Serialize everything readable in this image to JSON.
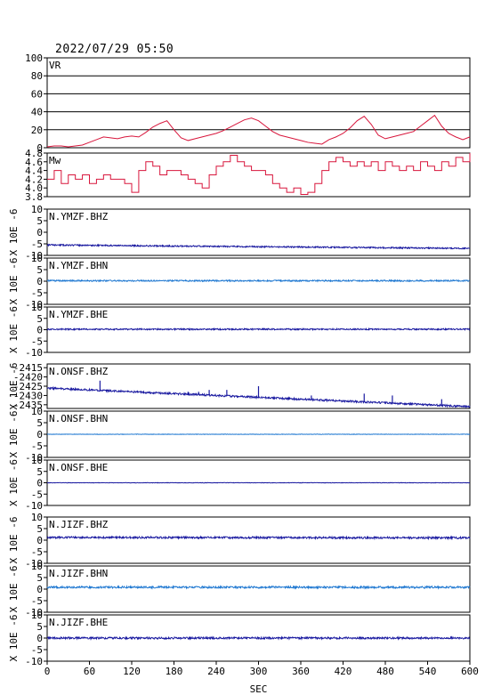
{
  "header": {
    "datetime": "2022/07/29 05:50"
  },
  "colors": {
    "frame": "#000000",
    "vr_line": "#d8163c",
    "mw_line": "#d8163c",
    "dark_trace": "#1a1aa0",
    "light_trace": "#1f78d1"
  },
  "chart_data": {
    "type": "line",
    "xlabel": "SEC",
    "xlim": [
      0,
      600
    ],
    "xticks": [
      0,
      60,
      120,
      180,
      240,
      300,
      360,
      420,
      480,
      540,
      600
    ],
    "panels": [
      {
        "id": "vr",
        "label": "VR",
        "ylim": [
          0,
          100
        ],
        "yticks": [
          0,
          20,
          40,
          60,
          80,
          100
        ],
        "ytick_labels": [
          "0",
          "20",
          "40",
          "60",
          "80",
          "100"
        ],
        "grid": true,
        "color_key": "vr_line",
        "series": {
          "x": [
            0,
            10,
            20,
            30,
            40,
            50,
            60,
            70,
            80,
            90,
            100,
            110,
            120,
            130,
            140,
            150,
            160,
            170,
            180,
            190,
            200,
            210,
            220,
            230,
            240,
            250,
            260,
            270,
            280,
            290,
            300,
            310,
            320,
            330,
            340,
            350,
            360,
            370,
            380,
            390,
            400,
            410,
            420,
            430,
            440,
            450,
            460,
            470,
            480,
            490,
            500,
            510,
            520,
            530,
            540,
            550,
            560,
            570,
            580,
            590,
            600
          ],
          "y": [
            1,
            2,
            2,
            1,
            2,
            3,
            6,
            9,
            12,
            11,
            10,
            12,
            13,
            12,
            17,
            23,
            27,
            30,
            20,
            11,
            8,
            10,
            12,
            14,
            16,
            19,
            23,
            27,
            31,
            33,
            30,
            24,
            18,
            14,
            12,
            10,
            8,
            6,
            5,
            4,
            9,
            12,
            16,
            22,
            30,
            35,
            26,
            14,
            10,
            12,
            14,
            16,
            18,
            24,
            30,
            36,
            24,
            16,
            12,
            9,
            12
          ]
        }
      },
      {
        "id": "mw",
        "label": "Mw",
        "ylim": [
          3.8,
          4.8
        ],
        "yticks": [
          3.8,
          4.0,
          4.2,
          4.4,
          4.6,
          4.8
        ],
        "ytick_labels": [
          "3.8",
          "4.0",
          "4.2",
          "4.4",
          "4.6",
          "4.8"
        ],
        "grid": false,
        "color_key": "mw_line",
        "series": {
          "x": [
            0,
            10,
            20,
            30,
            40,
            50,
            60,
            70,
            80,
            90,
            100,
            110,
            120,
            130,
            140,
            150,
            160,
            170,
            180,
            190,
            200,
            210,
            220,
            230,
            240,
            250,
            260,
            270,
            280,
            290,
            300,
            310,
            320,
            330,
            340,
            350,
            360,
            370,
            380,
            390,
            400,
            410,
            420,
            430,
            440,
            450,
            460,
            470,
            480,
            490,
            500,
            510,
            520,
            530,
            540,
            550,
            560,
            570,
            580,
            590,
            600
          ],
          "y": [
            4.2,
            4.4,
            4.1,
            4.3,
            4.2,
            4.3,
            4.1,
            4.2,
            4.3,
            4.2,
            4.2,
            4.1,
            3.9,
            4.4,
            4.6,
            4.5,
            4.3,
            4.4,
            4.4,
            4.3,
            4.2,
            4.1,
            4.0,
            4.3,
            4.5,
            4.6,
            4.75,
            4.6,
            4.5,
            4.4,
            4.4,
            4.3,
            4.1,
            4.0,
            3.9,
            4.0,
            3.85,
            3.9,
            4.1,
            4.4,
            4.6,
            4.7,
            4.6,
            4.5,
            4.6,
            4.5,
            4.6,
            4.4,
            4.6,
            4.5,
            4.4,
            4.5,
            4.4,
            4.6,
            4.5,
            4.4,
            4.6,
            4.5,
            4.7,
            4.6,
            4.8
          ]
        }
      },
      {
        "id": "ymzf-bhz",
        "label": "N.YMZF.BHZ",
        "unit_label": "X 10E -6",
        "ylim": [
          -10,
          10
        ],
        "yticks": [
          -10,
          -5,
          0,
          5,
          10
        ],
        "ytick_labels": [
          "-10",
          "-5",
          "0",
          "5",
          "10"
        ],
        "color_key": "dark_trace",
        "trace": {
          "start": -5.5,
          "end": -7.0,
          "noise": 0.25,
          "seed": 11
        }
      },
      {
        "id": "ymzf-bhn",
        "label": "N.YMZF.BHN",
        "unit_label": "X 10E -6",
        "ylim": [
          -10,
          10
        ],
        "yticks": [
          -10,
          -5,
          0,
          5,
          10
        ],
        "ytick_labels": [
          "-10",
          "-5",
          "0",
          "5",
          "10"
        ],
        "color_key": "light_trace",
        "trace": {
          "start": 0.2,
          "end": 0.2,
          "noise": 0.25,
          "seed": 12
        }
      },
      {
        "id": "ymzf-bhe",
        "label": "N.YMZF.BHE",
        "unit_label": "X 10E -6",
        "ylim": [
          -10,
          10
        ],
        "yticks": [
          -10,
          -5,
          0,
          5,
          10
        ],
        "ytick_labels": [
          "-10",
          "-5",
          "0",
          "5",
          "10"
        ],
        "color_key": "dark_trace",
        "trace": {
          "start": 0.2,
          "end": 0.2,
          "noise": 0.25,
          "seed": 13
        }
      },
      {
        "id": "onsf-bhz",
        "label": "N.ONSF.BHZ",
        "unit_label": "X 10E -6",
        "ylim": [
          -2437,
          -2413
        ],
        "yticks": [
          -2415,
          -2420,
          -2425,
          -2430,
          -2435
        ],
        "ytick_labels": [
          "-2415",
          "-2420",
          "-2425",
          "-2430",
          "-2435"
        ],
        "color_key": "dark_trace",
        "trace": {
          "start": -2426,
          "end": -2436,
          "noise": 0.35,
          "seed": 14
        },
        "spikes": [
          [
            75,
            -2422
          ],
          [
            200,
            -2428
          ],
          [
            215,
            -2428
          ],
          [
            230,
            -2427
          ],
          [
            255,
            -2427
          ],
          [
            300,
            -2425
          ],
          [
            375,
            -2430
          ],
          [
            450,
            -2429
          ],
          [
            490,
            -2430
          ],
          [
            560,
            -2432
          ]
        ]
      },
      {
        "id": "onsf-bhn",
        "label": "N.ONSF.BHN",
        "unit_label": "X 10E -6",
        "ylim": [
          -10,
          10
        ],
        "yticks": [
          -10,
          -5,
          0,
          5,
          10
        ],
        "ytick_labels": [
          "-10",
          "-5",
          "0",
          "5",
          "10"
        ],
        "color_key": "light_trace",
        "trace": {
          "start": 0.0,
          "end": 0.0,
          "noise": 0.08,
          "seed": 15
        }
      },
      {
        "id": "onsf-bhe",
        "label": "N.ONSF.BHE",
        "unit_label": "X 10E -6",
        "ylim": [
          -10,
          10
        ],
        "yticks": [
          -10,
          -5,
          0,
          5,
          10
        ],
        "ytick_labels": [
          "-10",
          "-5",
          "0",
          "5",
          "10"
        ],
        "color_key": "dark_trace",
        "trace": {
          "start": 0.0,
          "end": 0.0,
          "noise": 0.08,
          "seed": 16
        }
      },
      {
        "id": "jizf-bhz",
        "label": "N.JIZF.BHZ",
        "unit_label": "X 10E -6",
        "ylim": [
          -10,
          10
        ],
        "yticks": [
          -10,
          -5,
          0,
          5,
          10
        ],
        "ytick_labels": [
          "-10",
          "-5",
          "0",
          "5",
          "10"
        ],
        "color_key": "dark_trace",
        "trace": {
          "start": 1.2,
          "end": 1.0,
          "noise": 0.35,
          "seed": 17
        }
      },
      {
        "id": "jizf-bhn",
        "label": "N.JIZF.BHN",
        "unit_label": "X 10E -6",
        "ylim": [
          -10,
          10
        ],
        "yticks": [
          -10,
          -5,
          0,
          5,
          10
        ],
        "ytick_labels": [
          "-10",
          "-5",
          "0",
          "5",
          "10"
        ],
        "color_key": "light_trace",
        "trace": {
          "start": 0.8,
          "end": 0.8,
          "noise": 0.35,
          "seed": 18
        }
      },
      {
        "id": "jizf-bhe",
        "label": "N.JIZF.BHE",
        "unit_label": "X 10E -6",
        "ylim": [
          -10,
          10
        ],
        "yticks": [
          -10,
          -5,
          0,
          5,
          10
        ],
        "ytick_labels": [
          "-10",
          "-5",
          "0",
          "5",
          "10"
        ],
        "color_key": "dark_trace",
        "trace": {
          "start": 0.0,
          "end": 0.0,
          "noise": 0.35,
          "seed": 19
        }
      }
    ]
  }
}
